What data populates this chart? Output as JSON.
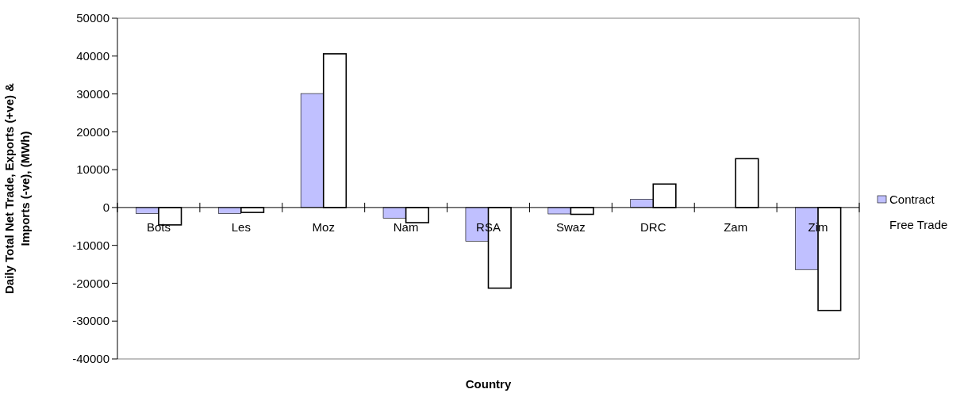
{
  "chart_data": {
    "type": "bar",
    "xlabel": "Country",
    "ylabel": "Daily Total Net Trade, Exports (+ve) & Imports (-ve), (MWh)",
    "categories": [
      "Bots",
      "Les",
      "Moz",
      "Nam",
      "RSA",
      "Swaz",
      "DRC",
      "Zam",
      "Zim"
    ],
    "series": [
      {
        "name": "Contract",
        "color": "#c0c0ff",
        "values": [
          -1600,
          -1600,
          30100,
          -2800,
          -8900,
          -1700,
          2200,
          0,
          -16400
        ]
      },
      {
        "name": "Free Trade",
        "color": "#ffffff",
        "values": [
          -4600,
          -1300,
          40600,
          -4000,
          -21300,
          -1800,
          6200,
          12900,
          -27200
        ]
      }
    ],
    "ylim": [
      -40000,
      50000
    ],
    "yticks": [
      -40000,
      -30000,
      -20000,
      -10000,
      0,
      10000,
      20000,
      30000,
      40000,
      50000
    ],
    "grid": false,
    "legend": "right"
  }
}
